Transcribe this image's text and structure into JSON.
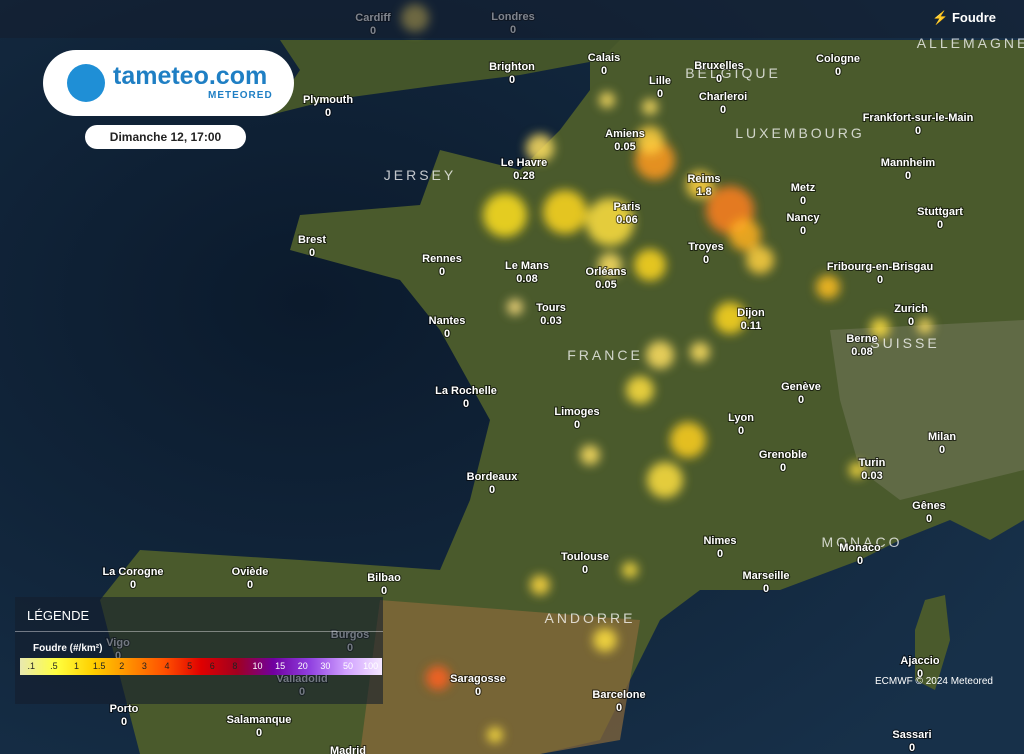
{
  "header": {
    "logo": "tameteo.com",
    "brand": "METEORED",
    "date": "Dimanche 12, 17:00",
    "layer": "Foudre"
  },
  "countries": [
    "ALLEMAGNE",
    "BELGIQUE",
    "LUXEMBOURG",
    "FRANCE",
    "SUISSE",
    "JERSEY",
    "ANDORRE",
    "MONACO"
  ],
  "cities": [
    {
      "name": "Cardiff",
      "value": 0
    },
    {
      "name": "Londres",
      "value": 0
    },
    {
      "name": "Brighton",
      "value": 0
    },
    {
      "name": "Calais",
      "value": 0
    },
    {
      "name": "Bruxelles",
      "value": 0
    },
    {
      "name": "Cologne",
      "value": 0
    },
    {
      "name": "Lille",
      "value": 0
    },
    {
      "name": "Charleroi",
      "value": 0
    },
    {
      "name": "Plymouth",
      "value": 0
    },
    {
      "name": "Amiens",
      "value": 0.05
    },
    {
      "name": "Frankfort-sur-le-Main",
      "value": 0
    },
    {
      "name": "Le Havre",
      "value": 0.28
    },
    {
      "name": "Reims",
      "value": 1.8
    },
    {
      "name": "Mannheim",
      "value": 0
    },
    {
      "name": "Metz",
      "value": 0
    },
    {
      "name": "Paris",
      "value": 0.06
    },
    {
      "name": "Nancy",
      "value": 0
    },
    {
      "name": "Stuttgart",
      "value": 0
    },
    {
      "name": "Brest",
      "value": 0
    },
    {
      "name": "Troyes",
      "value": 0
    },
    {
      "name": "Rennes",
      "value": 0
    },
    {
      "name": "Le Mans",
      "value": 0.08
    },
    {
      "name": "Orléans",
      "value": 0.05
    },
    {
      "name": "Fribourg-en-Brisgau",
      "value": 0
    },
    {
      "name": "Tours",
      "value": 0.03
    },
    {
      "name": "Dijon",
      "value": 0.11
    },
    {
      "name": "Zurich",
      "value": 0
    },
    {
      "name": "Nantes",
      "value": 0
    },
    {
      "name": "Berne",
      "value": 0.08
    },
    {
      "name": "La Rochelle",
      "value": 0
    },
    {
      "name": "Genève",
      "value": 0
    },
    {
      "name": "Limoges",
      "value": 0
    },
    {
      "name": "Lyon",
      "value": 0
    },
    {
      "name": "Milan",
      "value": 0
    },
    {
      "name": "Grenoble",
      "value": 0
    },
    {
      "name": "Turin",
      "value": 0.03
    },
    {
      "name": "Bordeaux",
      "value": 0
    },
    {
      "name": "Gênes",
      "value": 0
    },
    {
      "name": "Nimes",
      "value": 0
    },
    {
      "name": "Monaco",
      "value": 0
    },
    {
      "name": "Toulouse",
      "value": 0
    },
    {
      "name": "Marseille",
      "value": 0
    },
    {
      "name": "La Corogne",
      "value": 0
    },
    {
      "name": "Oviède",
      "value": 0
    },
    {
      "name": "Bilbao",
      "value": 0
    },
    {
      "name": "Burgos",
      "value": 0
    },
    {
      "name": "Vigo",
      "value": 0
    },
    {
      "name": "Saragosse",
      "value": 0
    },
    {
      "name": "Valladolid",
      "value": 0
    },
    {
      "name": "Ajaccio",
      "value": 0
    },
    {
      "name": "Barcelone",
      "value": 0
    },
    {
      "name": "Porto",
      "value": 0
    },
    {
      "name": "Salamanque",
      "value": 0
    },
    {
      "name": "Sassari",
      "value": 0
    },
    {
      "name": "Madrid"
    }
  ],
  "legend": {
    "title": "LÉGENDE",
    "subtitle": "Foudre (#/km²)",
    "scale": [
      ".1",
      ".5",
      "1",
      "1.5",
      "2",
      "3",
      "4",
      "5",
      "6",
      "8",
      "10",
      "15",
      "20",
      "30",
      "50",
      "100"
    ]
  },
  "attribution": "ECMWF © 2024 Meteored"
}
